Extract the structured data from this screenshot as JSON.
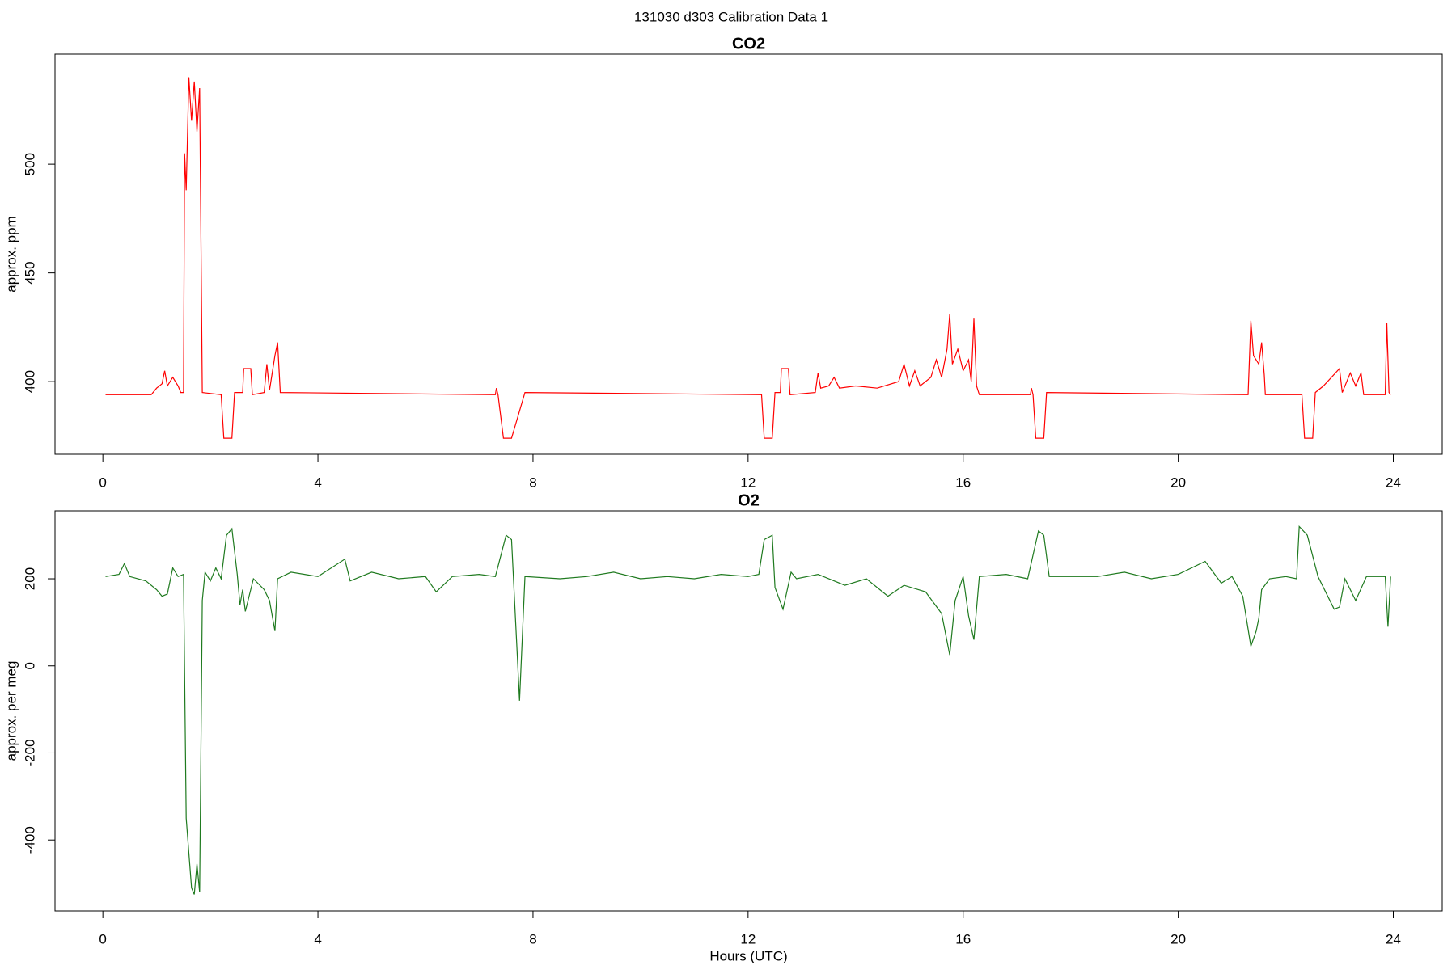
{
  "title": "131030   d303   Calibration Data 1",
  "chart_data": [
    {
      "type": "line",
      "title": "CO2",
      "ylabel": "approx. ppm",
      "color": "#ff0000",
      "xlim": [
        -0.89,
        24.91
      ],
      "xticks": [
        0,
        4,
        8,
        12,
        16,
        20,
        24
      ],
      "ylim": [
        366.6,
        550.6
      ],
      "yticks": [
        400,
        450,
        500
      ],
      "x": [
        0.05,
        0.9,
        1.0,
        1.1,
        1.15,
        1.2,
        1.3,
        1.4,
        1.45,
        1.5,
        1.52,
        1.55,
        1.6,
        1.65,
        1.7,
        1.75,
        1.8,
        1.85,
        2.2,
        2.25,
        2.4,
        2.45,
        2.6,
        2.62,
        2.75,
        2.78,
        3.0,
        3.05,
        3.1,
        3.2,
        3.25,
        3.3,
        7.3,
        7.32,
        7.35,
        7.45,
        7.6,
        7.85,
        12.25,
        12.3,
        12.45,
        12.5,
        12.6,
        12.62,
        12.75,
        12.78,
        13.25,
        13.3,
        13.35,
        13.5,
        13.6,
        13.7,
        14.0,
        14.4,
        14.8,
        14.9,
        15.0,
        15.1,
        15.2,
        15.4,
        15.5,
        15.6,
        15.7,
        15.75,
        15.8,
        15.9,
        16.0,
        16.1,
        16.15,
        16.2,
        16.25,
        16.3,
        17.25,
        17.27,
        17.3,
        17.35,
        17.5,
        17.55,
        21.3,
        21.35,
        21.4,
        21.5,
        21.55,
        21.6,
        21.62,
        22.3,
        22.35,
        22.5,
        22.55,
        22.7,
        23.0,
        23.05,
        23.2,
        23.3,
        23.4,
        23.45,
        23.85,
        23.88,
        23.92,
        23.95
      ],
      "values": [
        394,
        394,
        397,
        399,
        405,
        398,
        402,
        398,
        395,
        395,
        505,
        488,
        540,
        520,
        538,
        515,
        535,
        395,
        394,
        374,
        374,
        395,
        395,
        406,
        406,
        394,
        395,
        408,
        396,
        412,
        418,
        395,
        394,
        397,
        394,
        374,
        374,
        395,
        394,
        374,
        374,
        395,
        395,
        406,
        406,
        394,
        395,
        404,
        397,
        398,
        402,
        397,
        398,
        397,
        400,
        408,
        398,
        405,
        398,
        402,
        410,
        402,
        415,
        431,
        408,
        415,
        405,
        410,
        400,
        429,
        398,
        394,
        394,
        397,
        394,
        374,
        374,
        395,
        394,
        428,
        412,
        408,
        418,
        403,
        394,
        394,
        374,
        374,
        395,
        398,
        406,
        395,
        404,
        398,
        404,
        394,
        394,
        427,
        395,
        394
      ]
    },
    {
      "type": "line",
      "title": "O2",
      "ylabel": "approx. per meg",
      "xlabel": "Hours (UTC)",
      "color": "#1f7a1f",
      "xlim": [
        -0.89,
        24.91
      ],
      "xticks": [
        0,
        4,
        8,
        12,
        16,
        20,
        24
      ],
      "ylim": [
        -563,
        356
      ],
      "yticks": [
        -400,
        -200,
        0,
        200
      ],
      "x": [
        0.05,
        0.3,
        0.4,
        0.5,
        0.8,
        1.0,
        1.1,
        1.2,
        1.3,
        1.4,
        1.5,
        1.55,
        1.65,
        1.7,
        1.75,
        1.8,
        1.85,
        1.9,
        2.0,
        2.1,
        2.2,
        2.3,
        2.4,
        2.5,
        2.55,
        2.6,
        2.65,
        2.8,
        3.0,
        3.1,
        3.2,
        3.25,
        3.5,
        4.0,
        4.5,
        4.6,
        5.0,
        5.5,
        6.0,
        6.2,
        6.5,
        7.0,
        7.3,
        7.5,
        7.6,
        7.75,
        7.85,
        8.5,
        9.0,
        9.5,
        10.0,
        10.5,
        11.0,
        11.5,
        12.0,
        12.2,
        12.3,
        12.45,
        12.5,
        12.65,
        12.8,
        12.9,
        13.3,
        13.8,
        14.2,
        14.6,
        14.9,
        15.3,
        15.6,
        15.75,
        15.85,
        16.0,
        16.1,
        16.2,
        16.3,
        16.8,
        17.2,
        17.4,
        17.5,
        17.6,
        18.5,
        19.0,
        19.5,
        20.0,
        20.5,
        20.8,
        21.0,
        21.2,
        21.35,
        21.45,
        21.5,
        21.55,
        21.7,
        22.0,
        22.2,
        22.25,
        22.4,
        22.6,
        22.9,
        23.0,
        23.1,
        23.3,
        23.5,
        23.85,
        23.9,
        23.95
      ],
      "values": [
        205,
        210,
        235,
        205,
        195,
        175,
        160,
        165,
        225,
        205,
        210,
        -350,
        -510,
        -525,
        -455,
        -520,
        150,
        215,
        195,
        225,
        200,
        300,
        315,
        210,
        140,
        175,
        125,
        200,
        175,
        150,
        80,
        200,
        215,
        205,
        245,
        195,
        215,
        200,
        205,
        170,
        205,
        210,
        205,
        300,
        290,
        -80,
        205,
        200,
        205,
        215,
        200,
        205,
        200,
        210,
        205,
        210,
        290,
        300,
        180,
        130,
        215,
        200,
        210,
        185,
        200,
        160,
        185,
        170,
        120,
        25,
        150,
        205,
        115,
        60,
        205,
        210,
        200,
        310,
        300,
        205,
        205,
        215,
        200,
        210,
        240,
        190,
        205,
        160,
        45,
        80,
        110,
        175,
        200,
        205,
        200,
        320,
        300,
        205,
        130,
        135,
        200,
        150,
        205,
        205,
        90,
        205
      ]
    }
  ]
}
